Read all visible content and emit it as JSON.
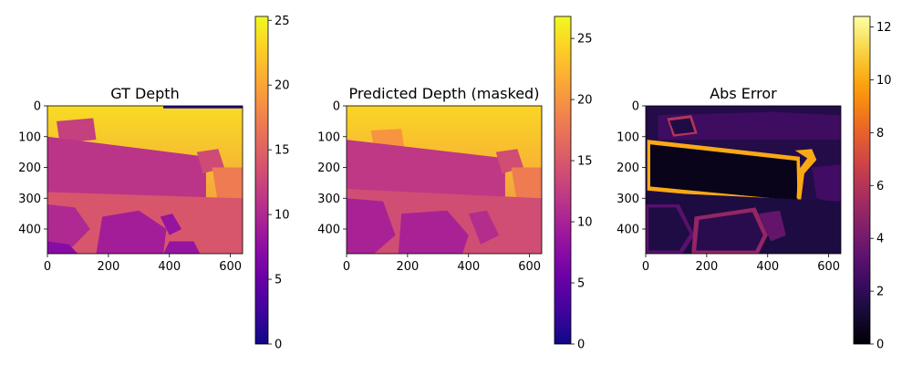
{
  "colormaps": {
    "plasma": [
      "#0d0887",
      "#46039f",
      "#7201a8",
      "#9c179e",
      "#bd3786",
      "#d8576b",
      "#ed7953",
      "#fb9f3a",
      "#fdca26",
      "#f0f921"
    ],
    "inferno": [
      "#000004",
      "#1b0c41",
      "#4a0c6b",
      "#781c6d",
      "#a52c60",
      "#cf4446",
      "#ed6925",
      "#fb9b06",
      "#f7d13d",
      "#fcffa4"
    ]
  },
  "chart_data": [
    {
      "type": "heatmap",
      "title": "GT Depth",
      "colormap": "plasma",
      "xlim": [
        0,
        640
      ],
      "ylim": [
        480,
        0
      ],
      "xticks": [
        0,
        200,
        400,
        600
      ],
      "yticks": [
        0,
        100,
        200,
        300,
        400
      ],
      "colorbar": {
        "range": [
          0,
          25.3
        ],
        "ticks": [
          0,
          5,
          10,
          15,
          20,
          25
        ]
      },
      "regions": [
        {
          "name": "background wall",
          "value": 22
        },
        {
          "name": "top-right dark strip",
          "value": 1
        },
        {
          "name": "table top",
          "value": 11
        },
        {
          "name": "lower floor",
          "value": 14
        },
        {
          "name": "chair shapes",
          "value": 9
        }
      ]
    },
    {
      "type": "heatmap",
      "title": "Predicted Depth (masked)",
      "colormap": "plasma",
      "xlim": [
        0,
        640
      ],
      "ylim": [
        480,
        0
      ],
      "xticks": [
        0,
        200,
        400,
        600
      ],
      "yticks": [
        0,
        100,
        200,
        300,
        400
      ],
      "colorbar": {
        "range": [
          0,
          26.8
        ],
        "ticks": [
          0,
          5,
          10,
          15,
          20,
          25
        ]
      },
      "regions": [
        {
          "name": "background wall",
          "value": 23
        },
        {
          "name": "table top",
          "value": 12
        },
        {
          "name": "lower floor",
          "value": 14
        },
        {
          "name": "chair shapes",
          "value": 10
        }
      ]
    },
    {
      "type": "heatmap",
      "title": "Abs Error",
      "colormap": "inferno",
      "xlim": [
        0,
        640
      ],
      "ylim": [
        480,
        0
      ],
      "xticks": [
        0,
        200,
        400,
        600
      ],
      "yticks": [
        0,
        100,
        200,
        300,
        400
      ],
      "colorbar": {
        "range": [
          0,
          12.4
        ],
        "ticks": [
          0,
          2,
          4,
          6,
          8,
          10,
          12
        ]
      },
      "regions": [
        {
          "name": "background",
          "value": 1.5
        },
        {
          "name": "table top",
          "value": 0.5
        },
        {
          "name": "table edge",
          "value": 9.5
        },
        {
          "name": "chair outlines",
          "value": 5
        }
      ]
    }
  ]
}
